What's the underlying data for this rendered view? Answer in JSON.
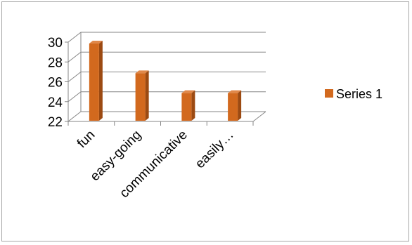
{
  "chart_data": {
    "type": "bar",
    "style": "3d-clustered-column",
    "categories": [
      "fun",
      "easy-going",
      "communicative",
      "easily…"
    ],
    "series": [
      {
        "name": "Series 1",
        "values": [
          30,
          27,
          25,
          25
        ]
      }
    ],
    "ylim": [
      22,
      30
    ],
    "yticks": [
      22,
      24,
      26,
      28,
      30
    ],
    "grid": true,
    "legend": "right",
    "colors": {
      "bar_front": "#d2691e",
      "bar_side": "#9c4a12",
      "bar_top": "#e0884a",
      "grid": "#868686",
      "legend_swatch": "#d2691e"
    }
  }
}
